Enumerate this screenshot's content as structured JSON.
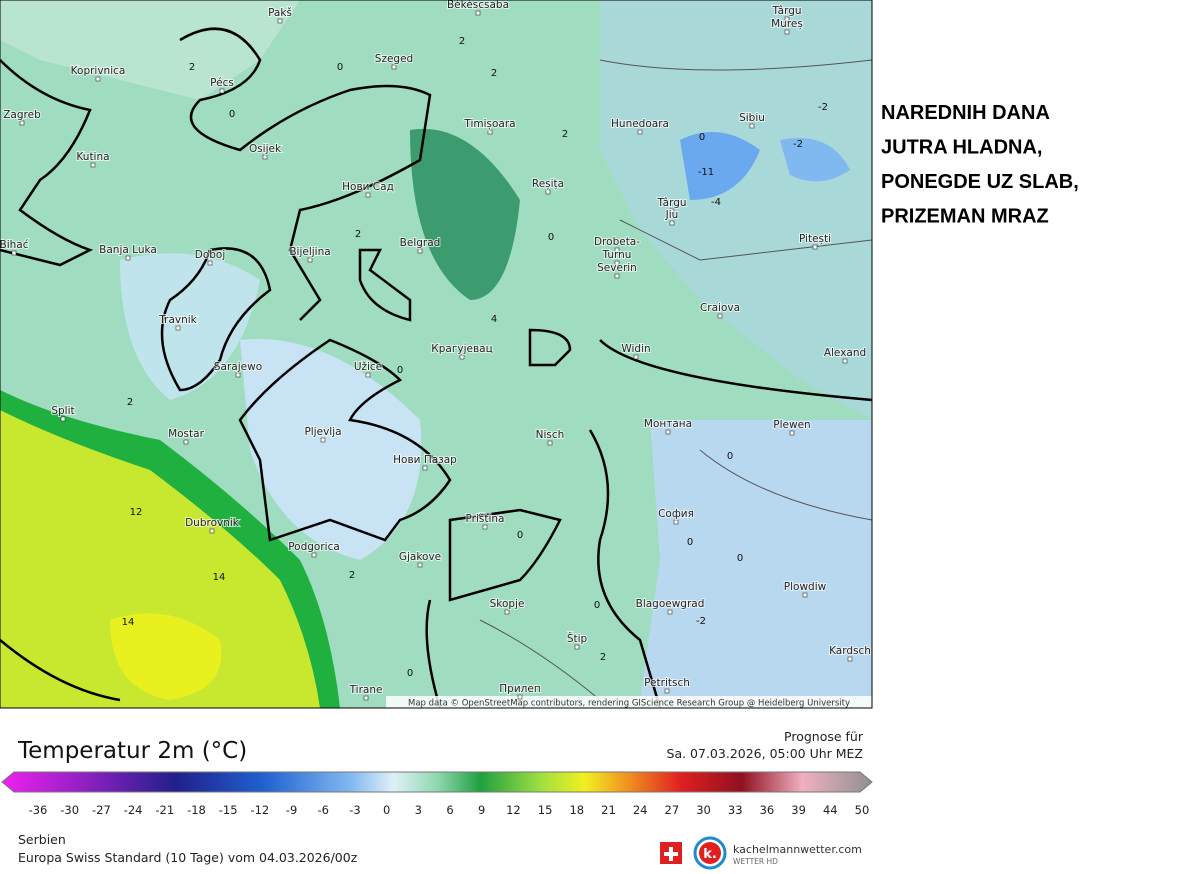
{
  "map": {
    "cities": [
      "Pakš",
      "Békéscsaba",
      "Târgu",
      "Mureș",
      "Koprivnica",
      "Pécs",
      "Szeged",
      "Zagreb",
      "Timișoara",
      "Hunedoara",
      "Sibiu",
      "Osijek",
      "Kutina",
      "Нови Сад",
      "Reșița",
      "Târgu",
      "Jiu",
      "Pitești",
      "Bihać",
      "Banja Luka",
      "Doboj",
      "Bijeljina",
      "Belgrad",
      "Drobeta-",
      "Turnu",
      "Severin",
      "Craiova",
      "Travnik",
      "Крагујевац",
      "Widin",
      "Alexand",
      "Sarajewo",
      "Užice",
      "Split",
      "Mostar",
      "Pljevlja",
      "Nisch",
      "Монтана",
      "Plewen",
      "Нови Пазар",
      "Dubrovnik",
      "София",
      "Priština",
      "Podgorica",
      "Gjakove",
      "Plowdiw",
      "Skopje",
      "Blagoewgrad",
      "Štip",
      "Kardsch",
      "Petritsch",
      "Tirane",
      "Прилеп"
    ],
    "contour_labels": [
      2,
      2,
      2,
      2,
      2,
      2,
      2,
      2,
      0,
      0,
      0,
      0,
      0,
      0,
      0,
      0,
      0,
      0,
      0,
      -2,
      -2,
      -2,
      -4,
      -11,
      4,
      12,
      14,
      14
    ],
    "attribution": "Map data © OpenStreetMap contributors, rendering GIScience Research Group @ Heidelberg University"
  },
  "headline": [
    "NAREDNIH DANA",
    "JUTRA HLADNA,",
    "PONEGDE UZ SLAB,",
    "PRIZEMAN MRAZ"
  ],
  "legend": {
    "title": "Temperatur 2m (°C)",
    "forecast_label": "Prognose für",
    "forecast_time": "Sa. 07.03.2026, 05:00 Uhr MEZ",
    "ticks": [
      -36,
      -30,
      -27,
      -24,
      -21,
      -18,
      -15,
      -12,
      -9,
      -6,
      -3,
      0,
      3,
      6,
      9,
      12,
      15,
      18,
      21,
      24,
      27,
      30,
      33,
      36,
      39,
      44,
      50
    ]
  },
  "footer": {
    "region": "Serbien",
    "model": "Europa Swiss Standard (10 Tage) vom 04.03.2026/00z",
    "brand": "kachelmannwetter.com",
    "brand_sub": "WETTER HD"
  }
}
